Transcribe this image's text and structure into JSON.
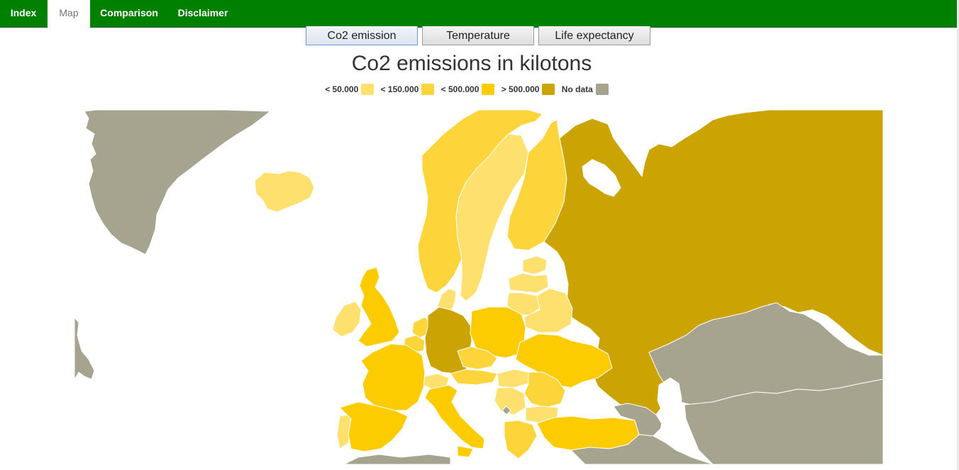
{
  "nav": {
    "items": [
      {
        "label": "Index",
        "active": false
      },
      {
        "label": "Map",
        "active": true
      },
      {
        "label": "Comparison",
        "active": false
      },
      {
        "label": "Disclaimer",
        "active": false
      }
    ]
  },
  "tabs": [
    {
      "label": "Co2 emission",
      "active": true
    },
    {
      "label": "Temperature",
      "active": false
    },
    {
      "label": "Life expectancy",
      "active": false
    }
  ],
  "map": {
    "title": "Co2 emissions in kilotons",
    "legend": [
      {
        "label": "< 50.000",
        "color": "#fde06d"
      },
      {
        "label": "< 150.000",
        "color": "#fdd43a"
      },
      {
        "label": "< 500.000",
        "color": "#fccc00"
      },
      {
        "label": "> 500.000",
        "color": "#cba403"
      },
      {
        "label": "No data",
        "color": "#a6a38e"
      }
    ],
    "colors": {
      "navbar": "#008000",
      "background": "#ffffff",
      "border": "#ffffff"
    },
    "regions": [
      {
        "name": "Greenland",
        "class": "No data"
      },
      {
        "name": "Iceland",
        "class": "< 50.000"
      },
      {
        "name": "Norway",
        "class": "< 150.000"
      },
      {
        "name": "Sweden",
        "class": "< 50.000"
      },
      {
        "name": "Finland",
        "class": "< 150.000"
      },
      {
        "name": "Russia",
        "class": "> 500.000"
      },
      {
        "name": "Estonia",
        "class": "< 50.000"
      },
      {
        "name": "Latvia",
        "class": "< 50.000"
      },
      {
        "name": "Lithuania",
        "class": "< 50.000"
      },
      {
        "name": "Belarus",
        "class": "< 50.000"
      },
      {
        "name": "United Kingdom",
        "class": "< 500.000"
      },
      {
        "name": "Ireland",
        "class": "< 50.000"
      },
      {
        "name": "Denmark",
        "class": "< 50.000"
      },
      {
        "name": "Netherlands",
        "class": "< 150.000"
      },
      {
        "name": "Belgium",
        "class": "< 150.000"
      },
      {
        "name": "Germany",
        "class": "> 500.000"
      },
      {
        "name": "Poland",
        "class": "< 500.000"
      },
      {
        "name": "Ukraine",
        "class": "< 500.000"
      },
      {
        "name": "France",
        "class": "< 500.000"
      },
      {
        "name": "Spain",
        "class": "< 500.000"
      },
      {
        "name": "Portugal",
        "class": "< 50.000"
      },
      {
        "name": "Italy",
        "class": "< 500.000"
      },
      {
        "name": "Czech Republic",
        "class": "< 150.000"
      },
      {
        "name": "Austria",
        "class": "< 150.000"
      },
      {
        "name": "Switzerland",
        "class": "< 50.000"
      },
      {
        "name": "Hungary",
        "class": "< 50.000"
      },
      {
        "name": "Romania",
        "class": "< 150.000"
      },
      {
        "name": "Bulgaria",
        "class": "< 50.000"
      },
      {
        "name": "Serbia",
        "class": "< 50.000"
      },
      {
        "name": "Kosovo",
        "class": "No data"
      },
      {
        "name": "Greece",
        "class": "< 150.000"
      },
      {
        "name": "Turkey",
        "class": "< 500.000"
      },
      {
        "name": "Kazakhstan",
        "class": "No data"
      },
      {
        "name": "Central Asia",
        "class": "No data"
      },
      {
        "name": "Caucasus",
        "class": "No data"
      },
      {
        "name": "Middle East",
        "class": "No data"
      },
      {
        "name": "North Africa",
        "class": "No data"
      },
      {
        "name": "Canada",
        "class": "No data"
      }
    ]
  }
}
